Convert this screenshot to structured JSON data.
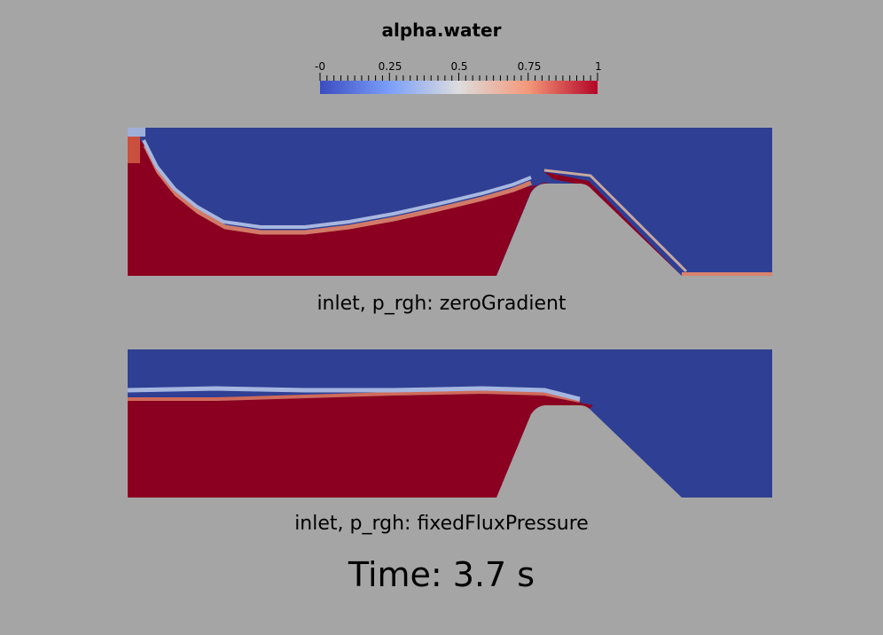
{
  "colorbar": {
    "title": "alpha.water",
    "tick_labels": [
      "-0",
      "0.25",
      "0.5",
      "0.75",
      "1"
    ],
    "colors": [
      "#3b4cc0",
      "#dddddd",
      "#b40426"
    ]
  },
  "panels": [
    {
      "caption": "inlet, p_rgh: zeroGradient"
    },
    {
      "caption": "inlet, p_rgh: fixedFluxPressure"
    }
  ],
  "time_label": "Time: 3.7 s",
  "colors": {
    "background": "#a5a5a5",
    "water": "#8b0020",
    "air": "#2f3f93"
  }
}
